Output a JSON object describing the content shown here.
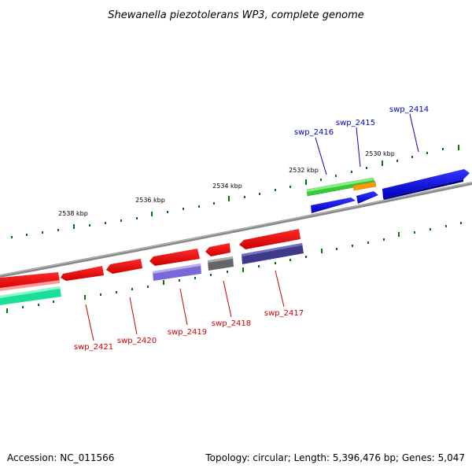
{
  "title": "Shewanella piezotolerans WP3, complete genome",
  "footer": {
    "accession": "Accession: NC_011566",
    "topology": "Topology: circular; Length: 5,396,476 bp; Genes: 5,047"
  },
  "scale_labels": [
    "2538 kbp",
    "2536 kbp",
    "2534 kbp",
    "2532 kbp",
    "2530 kbp"
  ],
  "genes_forward": [
    {
      "label": "swp_2416",
      "color": "#0000cc"
    },
    {
      "label": "swp_2415",
      "color": "#0000cc"
    },
    {
      "label": "swp_2414",
      "color": "#0000cc"
    }
  ],
  "genes_reverse": [
    {
      "label": "swp_2421",
      "color": "#cc0000"
    },
    {
      "label": "swp_2420",
      "color": "#cc0000"
    },
    {
      "label": "swp_2419",
      "color": "#cc0000"
    },
    {
      "label": "swp_2418",
      "color": "#cc0000"
    },
    {
      "label": "swp_2417",
      "color": "#cc0000"
    }
  ],
  "colors": {
    "forward_gene": "#0000e6",
    "reverse_gene": "#ff0000",
    "cds_green": "#33cc33",
    "cds_orange": "#ff9900",
    "cds_purple": "#7b68d6",
    "cds_darkpurple": "#3d3a8a",
    "cds_grey": "#666666",
    "cds_teal": "#1adf9a",
    "backbone": "#888888",
    "tick": "#007700"
  }
}
